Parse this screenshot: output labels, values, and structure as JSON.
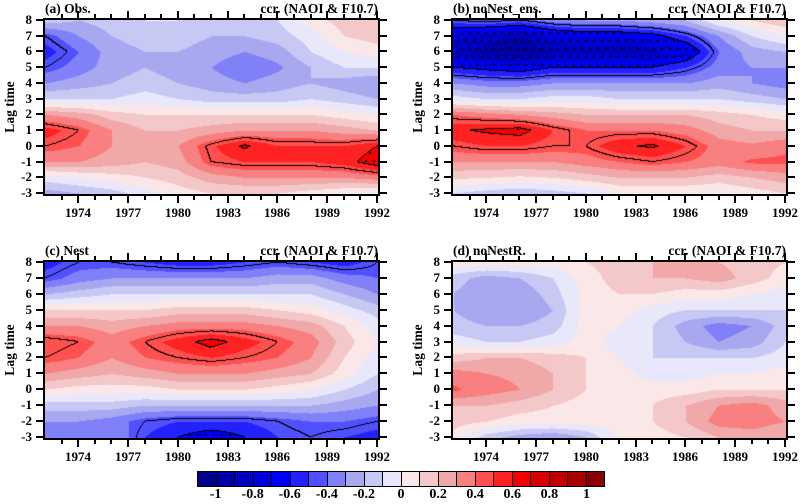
{
  "chart_data": {
    "type": "heatmap",
    "subtype": "filled-contour lag-correlation (4-panel)",
    "title": "",
    "xlabel": "",
    "y_label": "Lag time",
    "corner_title": "ccr. (NAOI & F10.7)",
    "x_range": [
      1972,
      1992
    ],
    "y_range": [
      -3,
      8
    ],
    "x_major_tick_labels": [
      "1974",
      "1977",
      "1980",
      "1983",
      "1986",
      "1989",
      "1992"
    ],
    "x_major_tick_years": [
      1974,
      1977,
      1980,
      1983,
      1986,
      1989,
      1992
    ],
    "x_minor_tick_step": 1,
    "y_tick_labels": [
      "8",
      "7",
      "6",
      "5",
      "4",
      "3",
      "2",
      "1",
      "0",
      "-1",
      "-2",
      "-3"
    ],
    "y_tick_values": [
      8,
      7,
      6,
      5,
      4,
      3,
      2,
      1,
      0,
      -1,
      -2,
      -3
    ],
    "contour_interval": 0.1,
    "significance_contour_levels": [
      0.45,
      0.6,
      -0.45,
      -0.6
    ],
    "stipple_threshold": 0.6,
    "grid_years": [
      1972,
      1974,
      1976,
      1978,
      1980,
      1982,
      1984,
      1986,
      1988,
      1990,
      1992
    ],
    "grid_lags": [
      8,
      7,
      6,
      5,
      4,
      3,
      2,
      1,
      0,
      -1,
      -2,
      -3
    ],
    "colorbar": {
      "min": -1.1,
      "max": 1.1,
      "tick_labels": [
        "-1",
        "-0.8",
        "-0.6",
        "-0.4",
        "-0.2",
        "0",
        "0.2",
        "0.4",
        "0.6",
        "0.8",
        "1"
      ],
      "colors": [
        "#00008b",
        "#0000a6",
        "#0000c0",
        "#0000da",
        "#0000f4",
        "#2222ff",
        "#5050ff",
        "#8080f8",
        "#a8a8f0",
        "#c8c8f4",
        "#e8e8fa",
        "#fae8e8",
        "#f4c8c8",
        "#f0a8a8",
        "#f88080",
        "#ff5050",
        "#ff2222",
        "#f40000",
        "#da0000",
        "#c00000",
        "#a60000",
        "#8b0000"
      ]
    },
    "panels": [
      {
        "label": "(a) Obs.",
        "title_right": "ccr. (NAOI & F10.7)",
        "values": [
          [
            -0.15,
            -0.2,
            -0.15,
            -0.1,
            -0.1,
            -0.15,
            -0.15,
            -0.1,
            0.05,
            0.15,
            0.2
          ],
          [
            -0.45,
            -0.3,
            -0.2,
            -0.15,
            -0.15,
            -0.2,
            -0.2,
            -0.15,
            -0.05,
            0.1,
            0.15
          ],
          [
            -0.55,
            -0.4,
            -0.25,
            -0.2,
            -0.2,
            -0.25,
            -0.3,
            -0.25,
            -0.1,
            0.0,
            0.05
          ],
          [
            -0.45,
            -0.35,
            -0.25,
            -0.2,
            -0.25,
            -0.3,
            -0.38,
            -0.32,
            -0.2,
            -0.1,
            -0.1
          ],
          [
            -0.3,
            -0.25,
            -0.2,
            -0.15,
            -0.2,
            -0.25,
            -0.3,
            -0.25,
            -0.2,
            -0.25,
            -0.3
          ],
          [
            -0.1,
            -0.1,
            -0.1,
            -0.05,
            -0.1,
            -0.15,
            -0.15,
            -0.15,
            -0.1,
            -0.15,
            -0.2
          ],
          [
            0.3,
            0.25,
            0.15,
            0.1,
            0.1,
            0.1,
            0.1,
            0.1,
            0.1,
            0.05,
            0.0
          ],
          [
            0.55,
            0.45,
            0.3,
            0.2,
            0.2,
            0.25,
            0.3,
            0.3,
            0.3,
            0.25,
            0.2
          ],
          [
            0.45,
            0.4,
            0.3,
            0.25,
            0.3,
            0.48,
            0.62,
            0.5,
            0.5,
            0.5,
            0.6
          ],
          [
            0.3,
            0.3,
            0.25,
            0.2,
            0.25,
            0.45,
            0.5,
            0.5,
            0.5,
            0.55,
            0.68
          ],
          [
            -0.05,
            0.0,
            0.05,
            0.1,
            0.15,
            0.25,
            0.3,
            0.3,
            0.3,
            0.3,
            0.35
          ],
          [
            -0.25,
            -0.2,
            -0.15,
            -0.05,
            0.05,
            0.1,
            0.1,
            0.1,
            0.05,
            0.0,
            -0.05
          ]
        ]
      },
      {
        "label": "(b) noNest_ens.",
        "title_right": "ccr. (NAOI & F10.7)",
        "values": [
          [
            -0.45,
            -0.4,
            -0.45,
            -0.35,
            -0.3,
            -0.3,
            -0.25,
            -0.2,
            0.0,
            0.1,
            0.18
          ],
          [
            -0.75,
            -0.85,
            -0.9,
            -0.75,
            -0.7,
            -0.7,
            -0.65,
            -0.5,
            -0.3,
            -0.1,
            0.0
          ],
          [
            -0.85,
            -0.95,
            -1.0,
            -0.9,
            -0.85,
            -0.9,
            -0.85,
            -0.75,
            -0.4,
            -0.25,
            -0.2
          ],
          [
            -0.6,
            -0.65,
            -0.7,
            -0.6,
            -0.6,
            -0.6,
            -0.6,
            -0.5,
            -0.35,
            -0.3,
            -0.3
          ],
          [
            -0.3,
            -0.35,
            -0.35,
            -0.3,
            -0.3,
            -0.3,
            -0.3,
            -0.3,
            -0.25,
            -0.3,
            -0.35
          ],
          [
            -0.05,
            -0.1,
            -0.1,
            -0.05,
            -0.05,
            -0.1,
            -0.1,
            -0.1,
            -0.1,
            -0.15,
            -0.2
          ],
          [
            0.4,
            0.35,
            0.3,
            0.25,
            0.2,
            0.2,
            0.2,
            0.2,
            0.15,
            0.1,
            0.05
          ],
          [
            0.58,
            0.62,
            0.65,
            0.5,
            0.4,
            0.4,
            0.4,
            0.35,
            0.25,
            0.2,
            0.2
          ],
          [
            0.45,
            0.5,
            0.5,
            0.45,
            0.45,
            0.58,
            0.62,
            0.5,
            0.35,
            0.32,
            0.38
          ],
          [
            0.3,
            0.3,
            0.3,
            0.3,
            0.35,
            0.4,
            0.45,
            0.4,
            0.35,
            0.42,
            0.42
          ],
          [
            0.12,
            0.1,
            0.08,
            0.1,
            0.15,
            0.2,
            0.2,
            0.2,
            0.15,
            0.2,
            0.25
          ],
          [
            -0.1,
            -0.15,
            -0.18,
            -0.15,
            -0.1,
            0.0,
            0.0,
            0.0,
            0.0,
            0.05,
            0.1
          ]
        ]
      },
      {
        "label": "(c) Nest",
        "title_right": "ccr. (NAOI & F10.7)",
        "values": [
          [
            -0.55,
            -0.45,
            -0.45,
            -0.5,
            -0.55,
            -0.55,
            -0.5,
            -0.45,
            -0.5,
            -0.55,
            -0.45
          ],
          [
            -0.45,
            -0.35,
            -0.3,
            -0.3,
            -0.3,
            -0.3,
            -0.3,
            -0.25,
            -0.25,
            -0.35,
            -0.4
          ],
          [
            -0.2,
            -0.15,
            -0.1,
            -0.1,
            -0.1,
            -0.1,
            -0.1,
            -0.1,
            -0.1,
            -0.2,
            -0.3
          ],
          [
            0.1,
            0.1,
            0.1,
            0.1,
            0.15,
            0.15,
            0.15,
            0.1,
            0.05,
            -0.05,
            -0.15
          ],
          [
            0.3,
            0.3,
            0.25,
            0.3,
            0.35,
            0.35,
            0.35,
            0.3,
            0.25,
            0.1,
            -0.05
          ],
          [
            0.5,
            0.45,
            0.35,
            0.45,
            0.55,
            0.65,
            0.55,
            0.45,
            0.35,
            0.15,
            0.0
          ],
          [
            0.45,
            0.4,
            0.3,
            0.4,
            0.45,
            0.5,
            0.45,
            0.4,
            0.3,
            0.1,
            -0.05
          ],
          [
            0.3,
            0.25,
            0.2,
            0.25,
            0.3,
            0.3,
            0.3,
            0.25,
            0.2,
            0.05,
            -0.1
          ],
          [
            0.1,
            0.05,
            0.05,
            0.05,
            0.1,
            0.1,
            0.1,
            0.05,
            0.0,
            -0.1,
            -0.2
          ],
          [
            -0.15,
            -0.15,
            -0.15,
            -0.2,
            -0.2,
            -0.2,
            -0.2,
            -0.2,
            -0.2,
            -0.25,
            -0.3
          ],
          [
            -0.3,
            -0.3,
            -0.35,
            -0.45,
            -0.5,
            -0.5,
            -0.5,
            -0.45,
            -0.4,
            -0.4,
            -0.45
          ],
          [
            -0.35,
            -0.35,
            -0.3,
            -0.5,
            -0.6,
            -0.68,
            -0.6,
            -0.5,
            -0.45,
            -0.5,
            -0.55
          ]
        ]
      },
      {
        "label": "(d) noNestR.",
        "title_right": "ccr. (NAOI & F10.7)",
        "values": [
          [
            0.05,
            0.05,
            0.05,
            0.05,
            0.1,
            0.15,
            0.2,
            0.2,
            0.2,
            0.15,
            0.1
          ],
          [
            -0.15,
            -0.25,
            -0.2,
            -0.1,
            0.05,
            0.15,
            0.2,
            0.2,
            0.25,
            0.15,
            0.05
          ],
          [
            -0.2,
            -0.3,
            -0.28,
            -0.15,
            0.05,
            0.1,
            0.1,
            0.05,
            0.05,
            0.0,
            -0.05
          ],
          [
            -0.2,
            -0.3,
            -0.3,
            -0.2,
            0.05,
            0.05,
            -0.05,
            -0.1,
            -0.1,
            -0.1,
            -0.1
          ],
          [
            -0.15,
            -0.2,
            -0.2,
            -0.15,
            0.05,
            0.0,
            -0.1,
            -0.25,
            -0.35,
            -0.3,
            -0.15
          ],
          [
            -0.05,
            -0.1,
            -0.1,
            -0.05,
            0.05,
            -0.05,
            -0.1,
            -0.2,
            -0.3,
            -0.25,
            -0.1
          ],
          [
            0.15,
            0.2,
            0.2,
            0.15,
            0.1,
            0.0,
            -0.1,
            -0.1,
            -0.1,
            -0.1,
            -0.05
          ],
          [
            0.35,
            0.3,
            0.28,
            0.2,
            0.1,
            0.05,
            -0.05,
            -0.05,
            0.0,
            0.0,
            0.05
          ],
          [
            0.42,
            0.35,
            0.3,
            0.2,
            0.1,
            0.05,
            0.05,
            0.05,
            0.1,
            0.1,
            0.1
          ],
          [
            0.2,
            0.2,
            0.15,
            0.1,
            0.05,
            0.05,
            0.1,
            0.2,
            0.3,
            0.35,
            0.25
          ],
          [
            0.15,
            0.1,
            0.05,
            0.05,
            0.05,
            0.05,
            0.1,
            0.2,
            0.35,
            0.35,
            0.3
          ],
          [
            0.05,
            -0.15,
            -0.25,
            -0.3,
            -0.2,
            0.05,
            0.05,
            0.1,
            0.2,
            0.25,
            0.2
          ]
        ]
      }
    ]
  }
}
